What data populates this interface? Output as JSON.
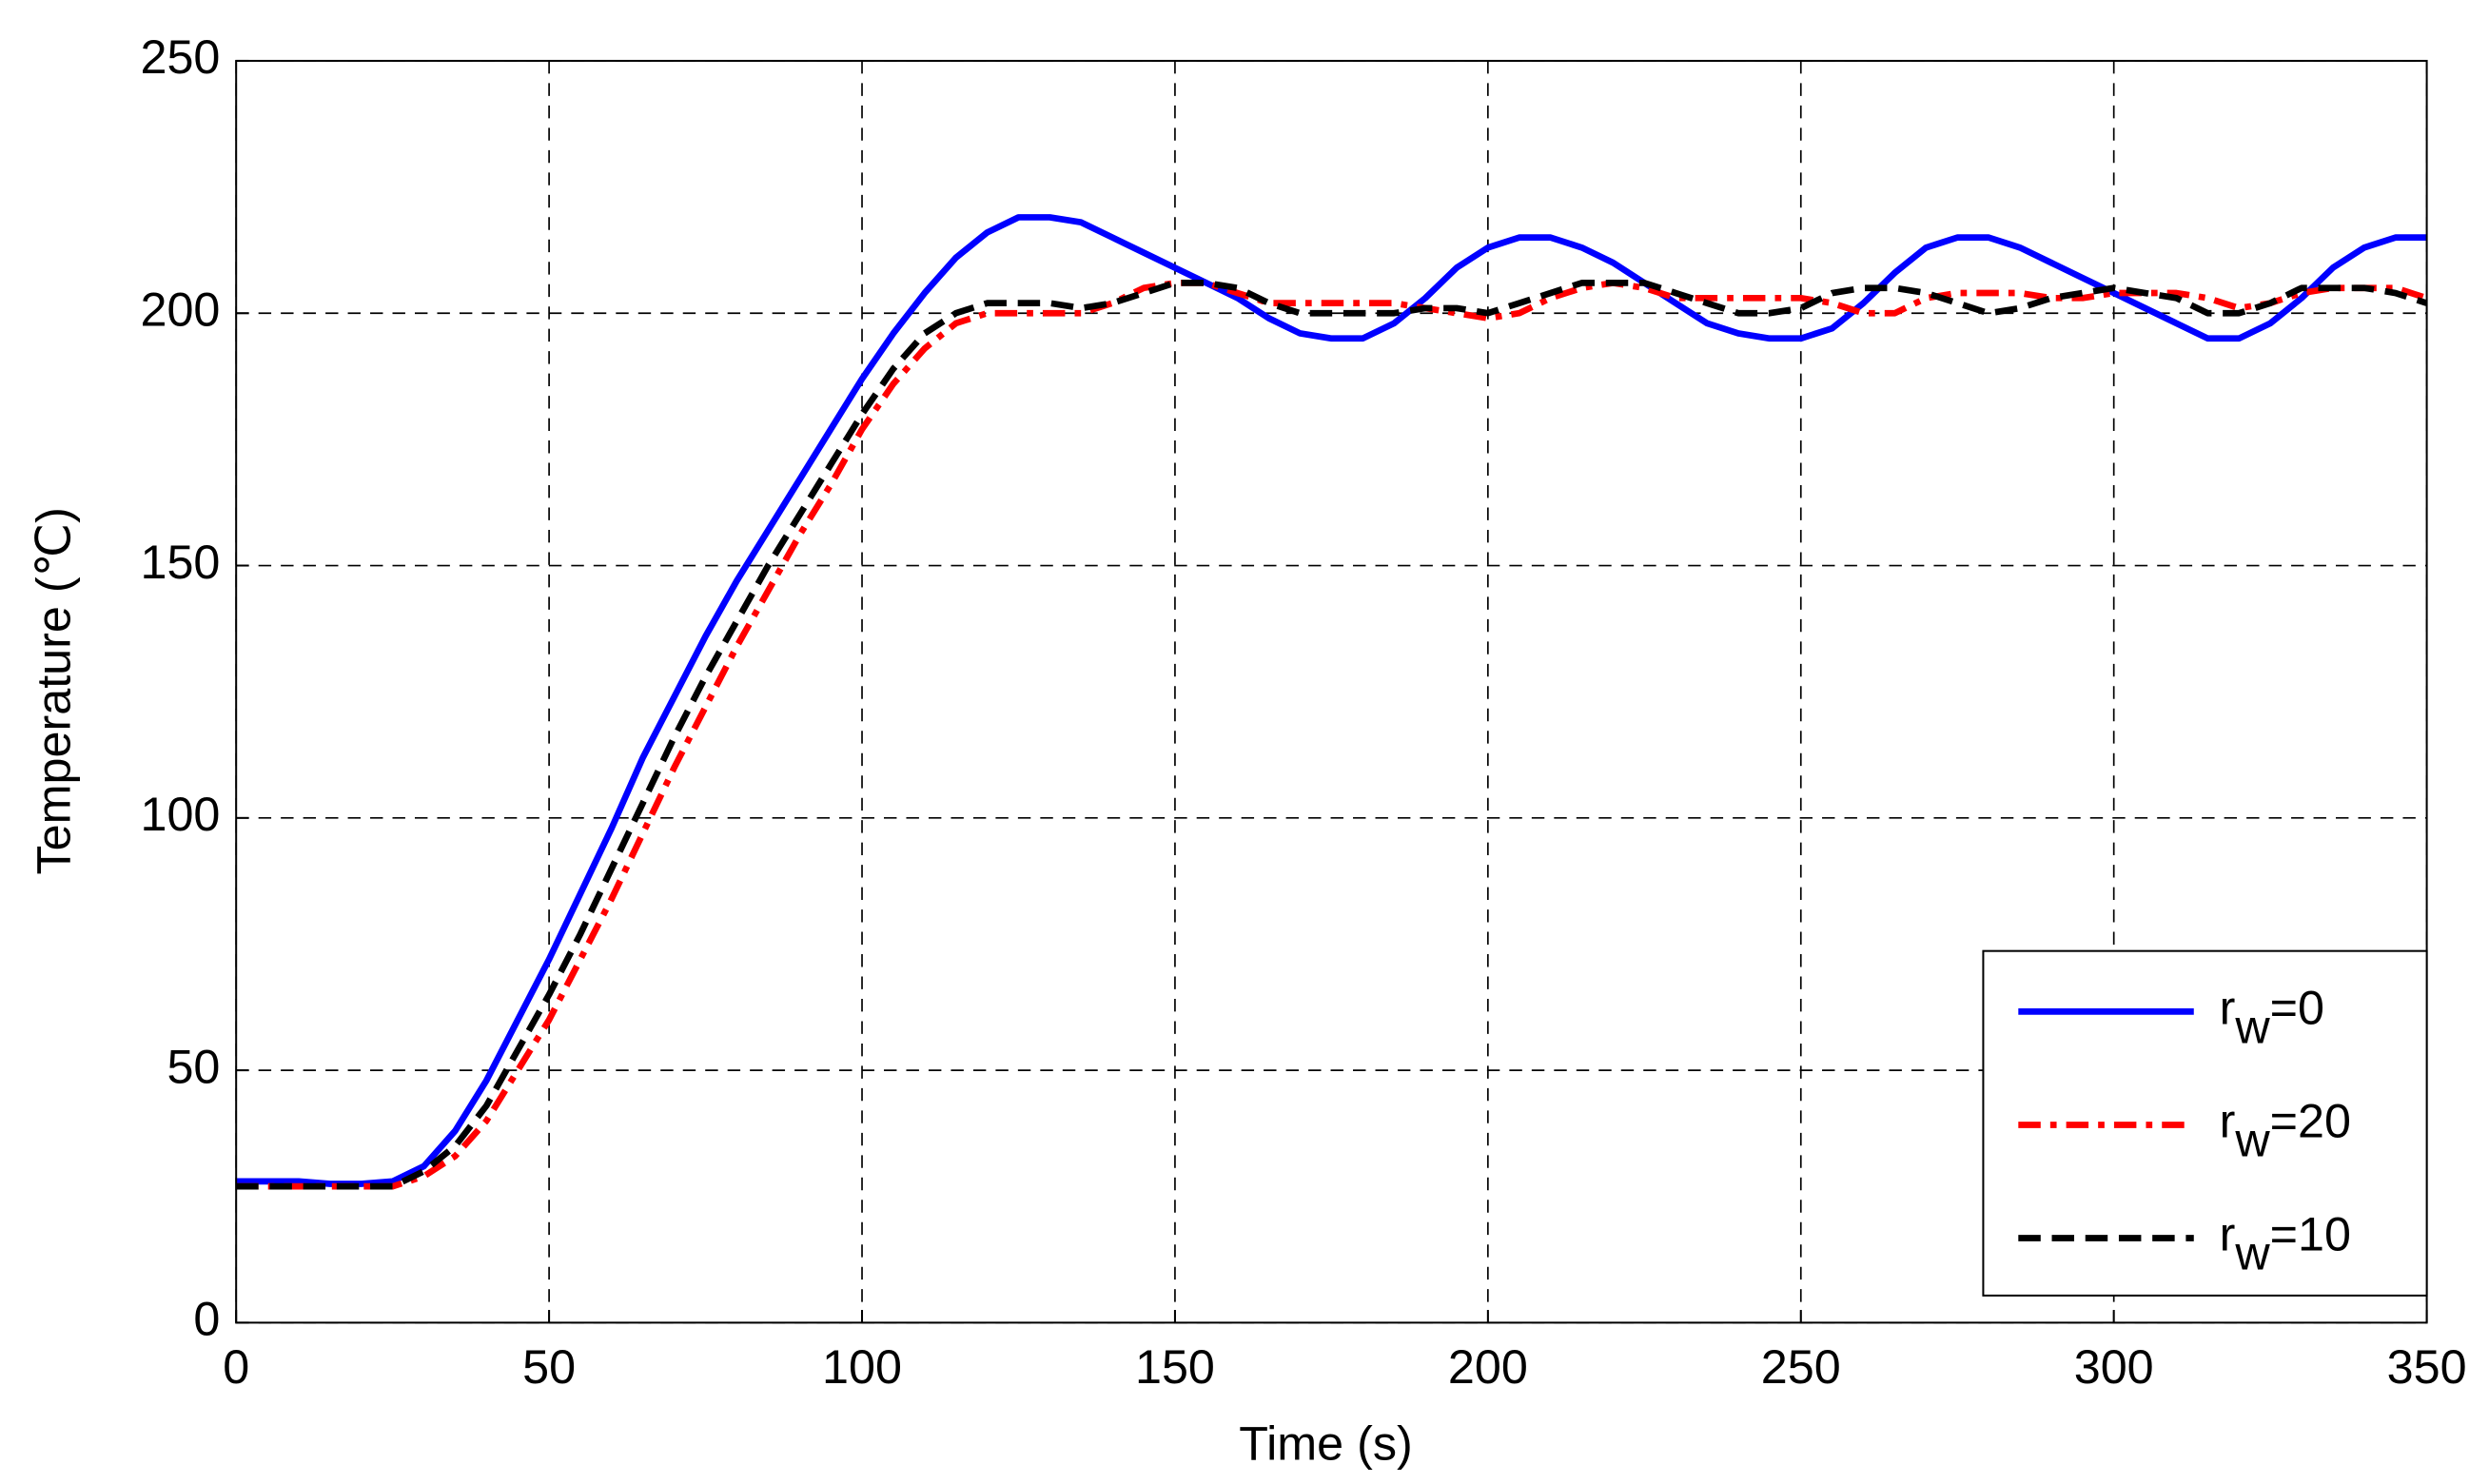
{
  "chart_data": {
    "type": "line",
    "xlabel": "Time (s)",
    "ylabel": "Temperature (℃)",
    "x": [
      0,
      5,
      10,
      15,
      20,
      25,
      30,
      35,
      40,
      45,
      50,
      55,
      60,
      65,
      70,
      75,
      80,
      85,
      90,
      95,
      100,
      105,
      110,
      115,
      120,
      125,
      130,
      135,
      140,
      145,
      150,
      155,
      160,
      165,
      170,
      175,
      180,
      185,
      190,
      195,
      200,
      205,
      210,
      215,
      220,
      225,
      230,
      235,
      240,
      245,
      250,
      255,
      260,
      265,
      270,
      275,
      280,
      285,
      290,
      295,
      300,
      305,
      310,
      315,
      320,
      325,
      330,
      335,
      340,
      345,
      350
    ],
    "series": [
      {
        "name": "rw=0",
        "color": "#0000ff",
        "linestyle": "solid",
        "values": [
          28,
          28,
          28,
          27.5,
          27.5,
          28,
          31,
          38,
          48,
          60,
          72,
          85,
          98,
          112,
          124,
          136,
          147,
          157,
          167,
          177,
          187,
          196,
          204,
          211,
          216,
          219,
          219,
          218,
          215,
          212,
          209,
          206,
          203,
          199,
          196,
          195,
          195,
          198,
          203,
          209,
          213,
          215,
          215,
          213,
          210,
          206,
          202,
          198,
          196,
          195,
          195,
          197,
          202,
          208,
          213,
          215,
          215,
          213,
          210,
          207,
          204,
          201,
          198,
          195,
          195,
          198,
          203,
          209,
          213,
          215,
          215
        ]
      },
      {
        "name": "rw=20",
        "color": "#ff0000",
        "linestyle": "dashdot",
        "values": [
          27,
          27,
          27,
          27,
          27,
          27,
          29,
          33,
          40,
          50,
          60,
          72,
          84,
          97,
          110,
          122,
          134,
          145,
          156,
          166,
          177,
          186,
          193,
          198,
          200,
          200,
          200,
          200,
          202,
          205,
          206,
          206,
          204,
          202,
          202,
          202,
          202,
          202,
          201,
          200,
          199,
          200,
          203,
          205,
          206,
          205,
          203,
          203,
          203,
          203,
          203,
          202,
          200,
          200,
          203,
          204,
          204,
          204,
          203,
          203,
          204,
          204,
          204,
          203,
          201,
          202,
          204,
          205,
          205,
          205,
          203
        ]
      },
      {
        "name": "rw=10",
        "color": "#000000",
        "linestyle": "dashed",
        "values": [
          27,
          27,
          27,
          27,
          27,
          27,
          30,
          35,
          43,
          54,
          65,
          77,
          90,
          103,
          116,
          128,
          139,
          150,
          160,
          170,
          180,
          189,
          196,
          200,
          202,
          202,
          202,
          201,
          202,
          204,
          206,
          206,
          205,
          202,
          200,
          200,
          200,
          200,
          201,
          201,
          200,
          202,
          204,
          206,
          206,
          206,
          204,
          202,
          200,
          200,
          201,
          204,
          205,
          205,
          204,
          202,
          200,
          201,
          203,
          204,
          205,
          204,
          203,
          200,
          200,
          202,
          205,
          205,
          205,
          204,
          202
        ]
      }
    ],
    "xlim": [
      0,
      350
    ],
    "xticks": [
      0,
      50,
      100,
      150,
      200,
      250,
      300,
      350
    ],
    "ylim": [
      0,
      250
    ],
    "yticks": [
      0,
      50,
      100,
      150,
      200,
      250
    ],
    "grid": true,
    "legend_position": "lower right"
  }
}
